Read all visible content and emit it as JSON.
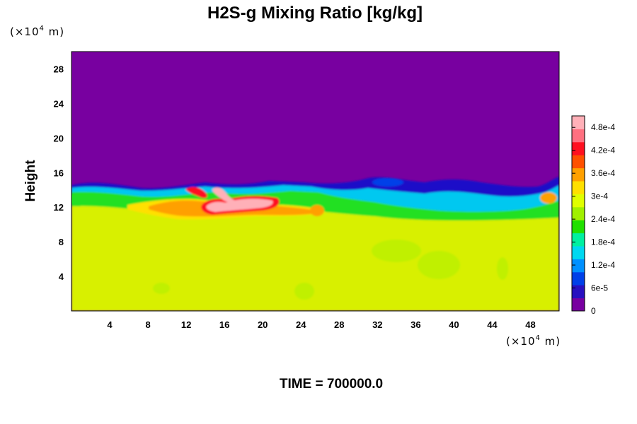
{
  "chart_data": {
    "type": "heatmap",
    "title": "H2S-g Mixing Ratio [kg/kg]",
    "ylabel": "Height",
    "y_unit": {
      "prefix": "(×10",
      "exp": "4",
      "suffix": " m)"
    },
    "x_unit": {
      "prefix": "(×10",
      "exp": "4",
      "suffix": " m)"
    },
    "xlim": [
      0,
      51
    ],
    "ylim": [
      0,
      30
    ],
    "x_ticks": [
      "4",
      "8",
      "12",
      "16",
      "20",
      "24",
      "28",
      "32",
      "36",
      "40",
      "44",
      "48"
    ],
    "y_ticks": [
      "4",
      "8",
      "12",
      "16",
      "20",
      "24",
      "28"
    ],
    "colorbar": {
      "min": 0,
      "max": 0.00051,
      "tick_labels": [
        "0",
        "6e-5",
        "1.2e-4",
        "1.8e-4",
        "2.4e-4",
        "3e-4",
        "3.6e-4",
        "4.2e-4",
        "4.8e-4"
      ],
      "tick_values": [
        0,
        6e-05,
        0.00012,
        0.00018,
        0.00024,
        0.0003,
        0.00036,
        0.00042,
        0.00048
      ],
      "colors": [
        "#7800a0",
        "#2810c0",
        "#0040e8",
        "#0090ff",
        "#00d8f0",
        "#00f0a0",
        "#20e000",
        "#a0f000",
        "#e0ff00",
        "#ffe000",
        "#ffa000",
        "#ff5000",
        "#ff1020",
        "#ff7080",
        "#ffb0b8"
      ]
    },
    "field_regions": {
      "upper_layer_value": 0,
      "lower_layer_value": 0.00034,
      "transition_height": 14.5,
      "peak_region_value": 0.0005,
      "peak_region_x": [
        13,
        23
      ],
      "peak_region_y": [
        11,
        14
      ]
    },
    "time_label": "TIME = 700000.0"
  }
}
